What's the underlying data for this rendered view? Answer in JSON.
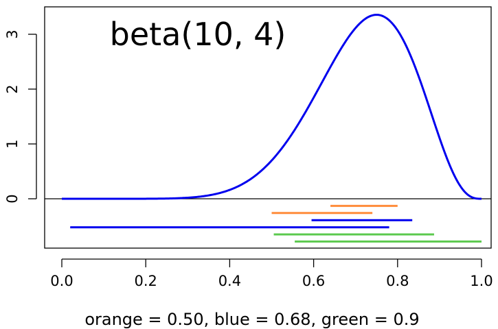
{
  "chart_data": {
    "type": "line",
    "title": "beta(10, 4)",
    "xlabel": "orange = 0.50, blue = 0.68, green = 0.9",
    "ylabel": "",
    "xlim": [
      -0.04,
      1.04
    ],
    "ylim": [
      -0.8,
      3.5
    ],
    "x_ticks": [
      "0.0",
      "0.2",
      "0.4",
      "0.6",
      "0.8",
      "1.0"
    ],
    "x_tick_values": [
      0.0,
      0.2,
      0.4,
      0.6,
      0.8,
      1.0
    ],
    "y_ticks": [
      "0",
      "1",
      "2",
      "3"
    ],
    "y_tick_values": [
      0,
      1,
      2,
      3
    ],
    "grid": false,
    "reference_line": {
      "y": 0,
      "color": "#000000"
    },
    "series": [
      {
        "color": "#0000ee",
        "distribution": {
          "family": "beta",
          "alpha": 10,
          "beta": 4
        },
        "x": [
          0.0,
          0.05,
          0.1,
          0.15,
          0.2,
          0.25,
          0.3,
          0.35,
          0.4,
          0.45,
          0.5,
          0.55,
          0.6,
          0.65,
          0.7,
          0.75,
          0.8,
          0.85,
          0.9,
          0.95,
          1.0
        ],
        "y": [
          0.0,
          0.0,
          0.0,
          0.0,
          0.0,
          0.002,
          0.012,
          0.06,
          0.153,
          0.351,
          0.698,
          1.206,
          1.832,
          2.476,
          3.004,
          3.273,
          3.11,
          2.513,
          1.523,
          0.462,
          0.0
        ]
      }
    ],
    "intervals": [
      {
        "color": "#ff8c3a",
        "x_start": 0.64,
        "x_end": 0.8,
        "y": -0.13
      },
      {
        "color": "#ff8c3a",
        "x_start": 0.5,
        "x_end": 0.74,
        "y": -0.26
      },
      {
        "color": "#0000ee",
        "x_start": 0.595,
        "x_end": 0.835,
        "y": -0.39
      },
      {
        "color": "#0000ee",
        "x_start": 0.02,
        "x_end": 0.78,
        "y": -0.52
      },
      {
        "color": "#5bc94e",
        "x_start": 0.505,
        "x_end": 0.887,
        "y": -0.65
      },
      {
        "color": "#5bc94e",
        "x_start": 0.555,
        "x_end": 1.0,
        "y": -0.78
      }
    ]
  }
}
